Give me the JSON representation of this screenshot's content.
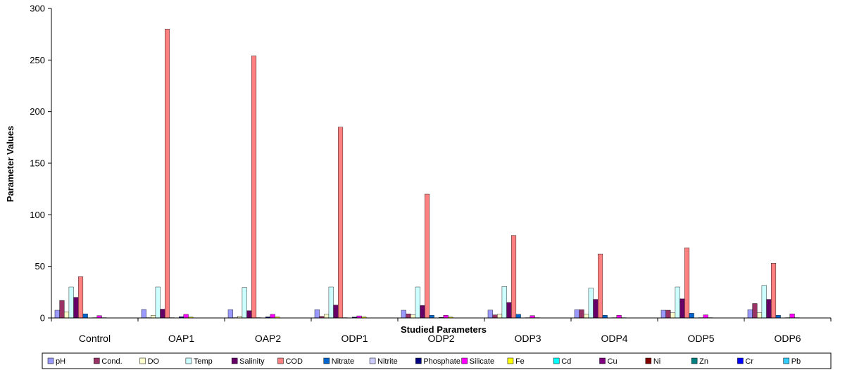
{
  "chart_data": {
    "type": "bar",
    "xlabel": "Studied Parameters",
    "ylabel": "Parameter Values",
    "ylim": [
      0,
      300
    ],
    "yticks": [
      0,
      50,
      100,
      150,
      200,
      250,
      300
    ],
    "grid": false,
    "legend_position": "bottom",
    "categories": [
      "Control",
      "OAP1",
      "OAP2",
      "ODP1",
      "ODP2",
      "ODP3",
      "ODP4",
      "ODP5",
      "ODP6"
    ],
    "series": [
      {
        "name": "pH",
        "color": "#9999ff",
        "values": [
          7.5,
          8.2,
          8.1,
          8.0,
          7.5,
          7.6,
          8.0,
          7.5,
          8.0
        ]
      },
      {
        "name": "Cond.",
        "color": "#993366",
        "values": [
          17,
          0.3,
          0.3,
          1.5,
          4,
          3,
          8,
          7.5,
          14
        ]
      },
      {
        "name": "DO",
        "color": "#ffffcc",
        "values": [
          6,
          2.5,
          1.5,
          3.5,
          3,
          3.5,
          3.5,
          5,
          5
        ]
      },
      {
        "name": "Temp",
        "color": "#ccffff",
        "values": [
          30,
          30,
          29.5,
          30,
          30,
          30.5,
          29,
          30,
          31.5
        ]
      },
      {
        "name": "Salinity",
        "color": "#660066",
        "values": [
          20,
          8.5,
          7,
          12.5,
          12,
          15,
          18,
          18.5,
          18
        ]
      },
      {
        "name": "COD",
        "color": "#ff8080",
        "values": [
          40,
          280,
          254,
          185,
          120,
          80,
          62,
          68,
          53
        ]
      },
      {
        "name": "Nitrate",
        "color": "#0066cc",
        "values": [
          4,
          0.3,
          0.3,
          0.3,
          2.5,
          3.5,
          2.5,
          4.5,
          2.5
        ]
      },
      {
        "name": "Nitrite",
        "color": "#ccccff",
        "values": [
          0.2,
          0.2,
          0.2,
          0.2,
          0.2,
          0.2,
          0.2,
          0.2,
          0.2
        ]
      },
      {
        "name": "Phosphate",
        "color": "#000080",
        "values": [
          0.3,
          1.2,
          1.0,
          0.8,
          0.5,
          0.3,
          0.3,
          0.3,
          0.3
        ]
      },
      {
        "name": "Silicate",
        "color": "#ff00ff",
        "values": [
          2.2,
          3.5,
          3.5,
          2.0,
          2.5,
          2.2,
          2.5,
          3.0,
          4.0
        ]
      },
      {
        "name": "Fe",
        "color": "#ffff00",
        "values": [
          0.3,
          0.8,
          1.0,
          1.0,
          0.8,
          0.3,
          0.3,
          0.3,
          0.3
        ]
      },
      {
        "name": "Cd",
        "color": "#00ffff",
        "values": [
          0.1,
          0.1,
          0.1,
          0.1,
          0.1,
          0.1,
          0.1,
          0.1,
          0.1
        ]
      },
      {
        "name": "Cu",
        "color": "#800080",
        "values": [
          0.1,
          0.1,
          0.1,
          0.1,
          0.1,
          0.1,
          0.1,
          0.1,
          0.1
        ]
      },
      {
        "name": "Ni",
        "color": "#800000",
        "values": [
          0.1,
          0.1,
          0.1,
          0.1,
          0.1,
          0.1,
          0.1,
          0.1,
          0.1
        ]
      },
      {
        "name": "Zn",
        "color": "#008080",
        "values": [
          0.1,
          0.1,
          0.1,
          0.1,
          0.1,
          0.1,
          0.1,
          0.1,
          0.1
        ]
      },
      {
        "name": "Cr",
        "color": "#0000ff",
        "values": [
          0.1,
          0.1,
          0.1,
          0.1,
          0.1,
          0.1,
          0.1,
          0.1,
          0.1
        ]
      },
      {
        "name": "Pb",
        "color": "#33ccff",
        "values": [
          0.1,
          0.1,
          0.1,
          0.1,
          0.1,
          0.1,
          0.1,
          0.1,
          0.1
        ]
      }
    ]
  }
}
